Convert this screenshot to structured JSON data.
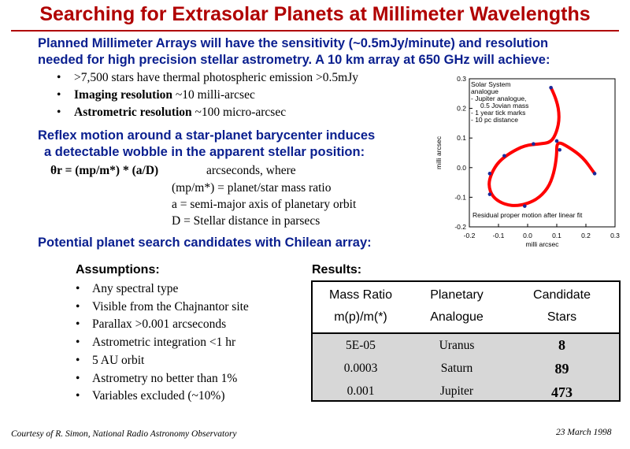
{
  "title": "Searching for Extrasolar Planets at Millimeter Wavelengths",
  "intro": {
    "line1": "Planned Millimeter Arrays will have the sensitivity (~0.5mJy/minute) and resolution",
    "line2": "needed for high precision stellar astrometry.  A 10 km array at 650 GHz will achieve:"
  },
  "bullets": [
    {
      "bold": "",
      "text": ">7,500 stars have thermal photospheric emission >0.5mJy"
    },
    {
      "bold": "Imaging resolution",
      "text": " ~10 milli-arcsec"
    },
    {
      "bold": "Astrometric resolution",
      "text": " ~100 micro-arcsec"
    }
  ],
  "reflex": {
    "line1": "Reflex motion around a star-planet barycenter induces",
    "line2": "a detectable wobble in the apparent stellar position:"
  },
  "formula": {
    "main": "θr = (mp/m*) * (a/D)",
    "units": "arcseconds, where",
    "def1": "(mp/m*) = planet/star mass ratio",
    "def2": "a = semi-major axis of planetary orbit",
    "def3": "D = Stellar distance in parsecs"
  },
  "potential": "Potential planet search candidates with Chilean array:",
  "assumptions": {
    "heading": "Assumptions:",
    "items": [
      "Any spectral type",
      "Visible from the Chajnantor site",
      "Parallax >0.001 arcseconds",
      "Astrometric integration <1 hr",
      "5 AU orbit",
      "Astrometry no better than 1%",
      "Variables excluded (~10%)"
    ]
  },
  "results": {
    "heading": "Results:",
    "headers": [
      [
        "Mass Ratio",
        "m(p)/m(*)"
      ],
      [
        "Planetary",
        "Analogue"
      ],
      [
        "Candidate",
        "Stars"
      ]
    ],
    "rows": [
      [
        "5E-05",
        "Uranus",
        "8"
      ],
      [
        "0.0003",
        "Saturn",
        "89"
      ],
      [
        "0.001",
        "Jupiter",
        "473"
      ]
    ]
  },
  "footer": {
    "left": "Courtesy of R. Simon, National Radio Astronomy Observatory",
    "right": "23 March 1998"
  },
  "chart_data": {
    "type": "line",
    "xlabel": "milli arcsec",
    "ylabel": "milli arcsec",
    "xlim": [
      -0.2,
      0.3
    ],
    "ylim": [
      -0.2,
      0.3
    ],
    "xticks": [
      "-0.2",
      "-0.1",
      "0.0",
      "0.1",
      "0.2",
      "0.3"
    ],
    "yticks": [
      "0.3",
      "0.2",
      "0.1",
      "0.0",
      "-0.1",
      "-0.2"
    ],
    "legend": [
      "Solar System",
      "analogue",
      "- Jupiter analogue,",
      "0.5 Jovian mass",
      "- 1 year tick marks",
      "- 10 pc distance"
    ],
    "annotation": "Residual proper motion after linear fit",
    "line_color": "#ff0000",
    "marker_color": "#1a2a9a",
    "curve": [
      [
        0.08,
        0.27
      ],
      [
        0.1,
        0.23
      ],
      [
        0.11,
        0.17
      ],
      [
        0.1,
        0.12
      ],
      [
        0.08,
        0.085
      ],
      [
        0.04,
        0.08
      ],
      [
        -0.01,
        0.075
      ],
      [
        -0.06,
        0.05
      ],
      [
        -0.1,
        0.02
      ],
      [
        -0.125,
        -0.02
      ],
      [
        -0.135,
        -0.06
      ],
      [
        -0.12,
        -0.1
      ],
      [
        -0.08,
        -0.125
      ],
      [
        -0.03,
        -0.13
      ],
      [
        0.03,
        -0.11
      ],
      [
        0.07,
        -0.07
      ],
      [
        0.09,
        -0.02
      ],
      [
        0.1,
        0.04
      ],
      [
        0.1,
        0.09
      ],
      [
        0.14,
        0.07
      ],
      [
        0.19,
        0.035
      ],
      [
        0.23,
        -0.02
      ]
    ],
    "markers": [
      [
        0.08,
        0.27
      ],
      [
        0.1,
        0.09
      ],
      [
        0.11,
        0.06
      ],
      [
        0.23,
        -0.02
      ],
      [
        0.02,
        0.08
      ],
      [
        -0.08,
        0.04
      ],
      [
        -0.13,
        -0.02
      ],
      [
        -0.13,
        -0.09
      ],
      [
        -0.01,
        -0.13
      ]
    ]
  }
}
